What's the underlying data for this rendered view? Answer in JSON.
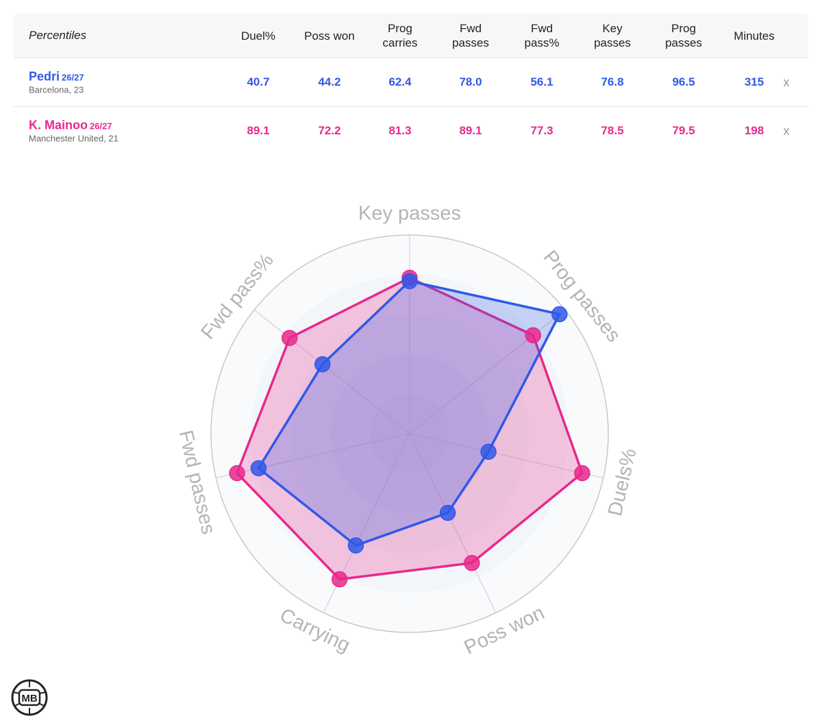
{
  "table": {
    "corner_label": "Percentiles",
    "columns": [
      {
        "line1": "Duel%",
        "line2": ""
      },
      {
        "line1": "Poss won",
        "line2": ""
      },
      {
        "line1": "Prog",
        "line2": "carries"
      },
      {
        "line1": "Fwd",
        "line2": "passes"
      },
      {
        "line1": "Fwd",
        "line2": "pass%"
      },
      {
        "line1": "Key",
        "line2": "passes"
      },
      {
        "line1": "Prog",
        "line2": "passes"
      },
      {
        "line1": "Minutes",
        "line2": ""
      }
    ],
    "remove_label": "x"
  },
  "players": [
    {
      "name": "Pedri",
      "season": "26/27",
      "club_age": "Barcelona, 23",
      "color": "#3058e8",
      "values": [
        "40.7",
        "44.2",
        "62.4",
        "78.0",
        "56.1",
        "76.8",
        "96.5",
        "315"
      ]
    },
    {
      "name": "K. Mainoo",
      "season": "26/27",
      "club_age": "Manchester United, 21",
      "color": "#e8288c",
      "values": [
        "89.1",
        "72.2",
        "81.3",
        "89.1",
        "77.3",
        "78.5",
        "79.5",
        "198"
      ]
    }
  ],
  "chart_data": {
    "type": "radar",
    "axes": [
      "Key passes",
      "Prog passes",
      "Duels%",
      "Poss won",
      "Carrying",
      "Fwd passes",
      "Fwd pass%"
    ],
    "range": [
      0,
      100
    ],
    "series": [
      {
        "name": "Pedri",
        "color": "#3058e8",
        "values": [
          76.8,
          96.5,
          40.7,
          44.2,
          62.4,
          78.0,
          56.1
        ]
      },
      {
        "name": "K. Mainoo",
        "color": "#e8288c",
        "values": [
          78.5,
          79.5,
          89.1,
          72.2,
          81.3,
          89.1,
          77.3
        ]
      }
    ]
  },
  "logo": {
    "text": "MB"
  }
}
